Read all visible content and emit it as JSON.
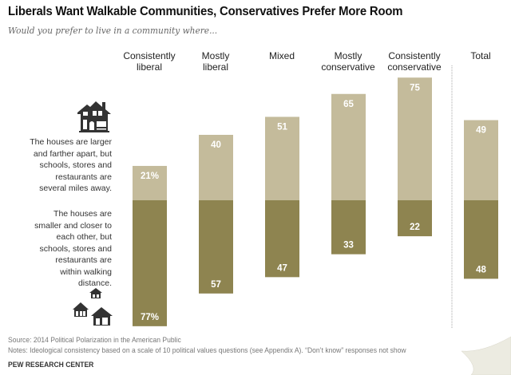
{
  "header": {
    "title": "Liberals Want Walkable Communities, Conservatives Prefer More Room",
    "subtitle": "Would you prefer to live in a community where..."
  },
  "legend": {
    "top": {
      "icon": "large-house-icon",
      "text": "The houses are larger\nand farther apart, but\nschools, stores and\nrestaurants are\nseveral miles away."
    },
    "bottom": {
      "icon": "small-houses-icon",
      "text": "The houses are\nsmaller and closer to\neach other, but\nschools, stores and\nrestaurants are\nwithin walking\ndistance."
    }
  },
  "colors": {
    "larger_farther": "#c4bb9b",
    "smaller_walkable": "#8e8450",
    "label": "#ffffff",
    "separator": "#aaaaaa"
  },
  "chart_data": {
    "type": "bar",
    "stacked": "diverging",
    "title": "Liberals Want Walkable Communities, Conservatives Prefer More Room",
    "subtitle": "Would you prefer to live in a community where...",
    "categories": [
      "Consistently\nliberal",
      "Mostly\nliberal",
      "Mixed",
      "Mostly\nconservative",
      "Consistently\nconservative",
      "Total"
    ],
    "series": [
      {
        "name": "The houses are larger and farther apart, but schools, stores and restaurants are several miles away.",
        "direction": "up",
        "values": [
          21,
          40,
          51,
          65,
          75,
          49
        ],
        "labels": [
          "21%",
          "40",
          "51",
          "65",
          "75",
          "49"
        ]
      },
      {
        "name": "The houses are smaller and closer to each other, but schools, stores and restaurants are within walking distance.",
        "direction": "down",
        "values": [
          77,
          57,
          47,
          33,
          22,
          48
        ],
        "labels": [
          "77%",
          "57",
          "47",
          "33",
          "22",
          "48"
        ]
      }
    ],
    "unit": "%",
    "separator_before": "Total",
    "grid": false,
    "legend": "left"
  },
  "footer": {
    "source": "Source: 2014 Political Polarization in the American Public",
    "notes": "Notes: Ideological consistency based on a scale of 10 political values questions (see Appendix A). “Don’t know” responses not show",
    "brand": "PEW RESEARCH CENTER"
  }
}
